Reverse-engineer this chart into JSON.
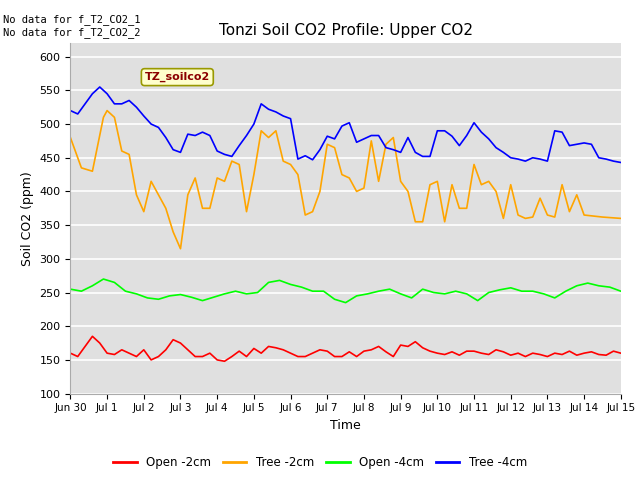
{
  "title": "Tonzi Soil CO2 Profile: Upper CO2",
  "xlabel": "Time",
  "ylabel": "Soil CO2 (ppm)",
  "ylim": [
    100,
    620
  ],
  "yticks": [
    100,
    150,
    200,
    250,
    300,
    350,
    400,
    450,
    500,
    550,
    600
  ],
  "plot_bg_color": "#e0e0e0",
  "fig_bg_color": "#ffffff",
  "grid_color": "white",
  "annotation_text": "No data for f_T2_CO2_1\nNo data for f_T2_CO2_2",
  "legend_label_text": "TZ_soilco2",
  "legend_box_color": "#ffffcc",
  "legend_box_edge_color": "#999900",
  "xtick_labels": [
    "Jun 30",
    "Jul 1",
    "Jul 2",
    "Jul 3",
    "Jul 4",
    "Jul 5",
    "Jul 6",
    "Jul 7",
    "Jul 8",
    "Jul 9",
    "Jul 10",
    "Jul 11",
    "Jul 12",
    "Jul 13",
    "Jul 14",
    "Jul 15"
  ],
  "series": {
    "open_2cm": {
      "color": "#ff0000",
      "label": "Open -2cm",
      "x": [
        0,
        0.2,
        0.4,
        0.6,
        0.8,
        1.0,
        1.2,
        1.4,
        1.6,
        1.8,
        2.0,
        2.2,
        2.4,
        2.6,
        2.8,
        3.0,
        3.2,
        3.4,
        3.6,
        3.8,
        4.0,
        4.2,
        4.4,
        4.6,
        4.8,
        5.0,
        5.2,
        5.4,
        5.6,
        5.8,
        6.0,
        6.2,
        6.4,
        6.6,
        6.8,
        7.0,
        7.2,
        7.4,
        7.6,
        7.8,
        8.0,
        8.2,
        8.4,
        8.6,
        8.8,
        9.0,
        9.2,
        9.4,
        9.6,
        9.8,
        10.0,
        10.2,
        10.4,
        10.6,
        10.8,
        11.0,
        11.2,
        11.4,
        11.6,
        11.8,
        12.0,
        12.2,
        12.4,
        12.6,
        12.8,
        13.0,
        13.2,
        13.4,
        13.6,
        13.8,
        14.0,
        14.2,
        14.4,
        14.6,
        14.8,
        15.0
      ],
      "y": [
        160,
        155,
        170,
        185,
        175,
        160,
        158,
        165,
        160,
        155,
        165,
        150,
        155,
        165,
        180,
        175,
        165,
        155,
        155,
        160,
        150,
        148,
        155,
        163,
        155,
        167,
        160,
        170,
        168,
        165,
        160,
        155,
        155,
        160,
        165,
        163,
        155,
        155,
        162,
        155,
        163,
        165,
        170,
        162,
        155,
        172,
        170,
        177,
        168,
        163,
        160,
        158,
        162,
        157,
        163,
        163,
        160,
        158,
        165,
        162,
        157,
        160,
        155,
        160,
        158,
        155,
        160,
        158,
        163,
        157,
        160,
        162,
        158,
        157,
        163,
        160
      ]
    },
    "tree_2cm": {
      "color": "#ffa500",
      "label": "Tree -2cm",
      "x": [
        0,
        0.3,
        0.6,
        0.9,
        1.0,
        1.2,
        1.4,
        1.6,
        1.8,
        2.0,
        2.2,
        2.4,
        2.6,
        2.8,
        3.0,
        3.2,
        3.4,
        3.6,
        3.8,
        4.0,
        4.2,
        4.4,
        4.6,
        4.8,
        5.0,
        5.2,
        5.4,
        5.6,
        5.8,
        6.0,
        6.2,
        6.4,
        6.6,
        6.8,
        7.0,
        7.2,
        7.4,
        7.6,
        7.8,
        8.0,
        8.2,
        8.4,
        8.6,
        8.8,
        9.0,
        9.2,
        9.4,
        9.6,
        9.8,
        10.0,
        10.2,
        10.4,
        10.6,
        10.8,
        11.0,
        11.2,
        11.4,
        11.6,
        11.8,
        12.0,
        12.2,
        12.4,
        12.6,
        12.8,
        13.0,
        13.2,
        13.4,
        13.6,
        13.8,
        14.0,
        14.5,
        15.0
      ],
      "y": [
        480,
        435,
        430,
        510,
        520,
        510,
        460,
        455,
        395,
        370,
        415,
        395,
        375,
        340,
        315,
        395,
        420,
        375,
        375,
        420,
        415,
        445,
        440,
        370,
        425,
        490,
        480,
        490,
        445,
        440,
        425,
        365,
        370,
        400,
        470,
        465,
        425,
        420,
        400,
        405,
        475,
        415,
        470,
        480,
        415,
        400,
        355,
        355,
        410,
        415,
        355,
        410,
        375,
        375,
        440,
        410,
        415,
        400,
        360,
        410,
        365,
        360,
        362,
        390,
        365,
        362,
        410,
        370,
        395,
        365,
        362,
        360
      ]
    },
    "open_4cm": {
      "color": "#00ff00",
      "label": "Open -4cm",
      "x": [
        0,
        0.3,
        0.6,
        0.9,
        1.2,
        1.5,
        1.8,
        2.1,
        2.4,
        2.7,
        3.0,
        3.3,
        3.6,
        3.9,
        4.2,
        4.5,
        4.8,
        5.1,
        5.4,
        5.7,
        6.0,
        6.3,
        6.6,
        6.9,
        7.2,
        7.5,
        7.8,
        8.1,
        8.4,
        8.7,
        9.0,
        9.3,
        9.6,
        9.9,
        10.2,
        10.5,
        10.8,
        11.1,
        11.4,
        11.7,
        12.0,
        12.3,
        12.6,
        12.9,
        13.2,
        13.5,
        13.8,
        14.1,
        14.4,
        14.7,
        15.0
      ],
      "y": [
        255,
        252,
        260,
        270,
        265,
        252,
        248,
        242,
        240,
        245,
        247,
        243,
        238,
        243,
        248,
        252,
        248,
        250,
        265,
        268,
        262,
        258,
        252,
        252,
        240,
        235,
        245,
        248,
        252,
        255,
        248,
        242,
        255,
        250,
        248,
        252,
        248,
        238,
        250,
        254,
        257,
        252,
        252,
        248,
        242,
        252,
        260,
        264,
        260,
        258,
        252
      ]
    },
    "tree_4cm": {
      "color": "#0000ff",
      "label": "Tree -4cm",
      "x": [
        0,
        0.2,
        0.4,
        0.6,
        0.8,
        1.0,
        1.2,
        1.4,
        1.6,
        1.8,
        2.0,
        2.2,
        2.4,
        2.6,
        2.8,
        3.0,
        3.2,
        3.4,
        3.6,
        3.8,
        4.0,
        4.2,
        4.4,
        4.6,
        4.8,
        5.0,
        5.2,
        5.4,
        5.6,
        5.8,
        6.0,
        6.2,
        6.4,
        6.6,
        6.8,
        7.0,
        7.2,
        7.4,
        7.6,
        7.8,
        8.0,
        8.2,
        8.4,
        8.6,
        8.8,
        9.0,
        9.2,
        9.4,
        9.6,
        9.8,
        10.0,
        10.2,
        10.4,
        10.6,
        10.8,
        11.0,
        11.2,
        11.4,
        11.6,
        11.8,
        12.0,
        12.2,
        12.4,
        12.6,
        12.8,
        13.0,
        13.2,
        13.4,
        13.6,
        13.8,
        14.0,
        14.2,
        14.4,
        14.6,
        14.8,
        15.0
      ],
      "y": [
        520,
        515,
        530,
        545,
        555,
        545,
        530,
        530,
        535,
        525,
        512,
        500,
        495,
        480,
        462,
        458,
        485,
        483,
        488,
        483,
        460,
        455,
        452,
        468,
        483,
        500,
        530,
        522,
        518,
        512,
        508,
        448,
        453,
        447,
        462,
        482,
        478,
        497,
        502,
        473,
        478,
        483,
        483,
        465,
        462,
        458,
        480,
        458,
        452,
        452,
        490,
        490,
        482,
        468,
        483,
        502,
        488,
        478,
        465,
        458,
        450,
        448,
        445,
        450,
        448,
        445,
        490,
        488,
        468,
        470,
        472,
        470,
        450,
        448,
        445,
        443
      ]
    }
  }
}
